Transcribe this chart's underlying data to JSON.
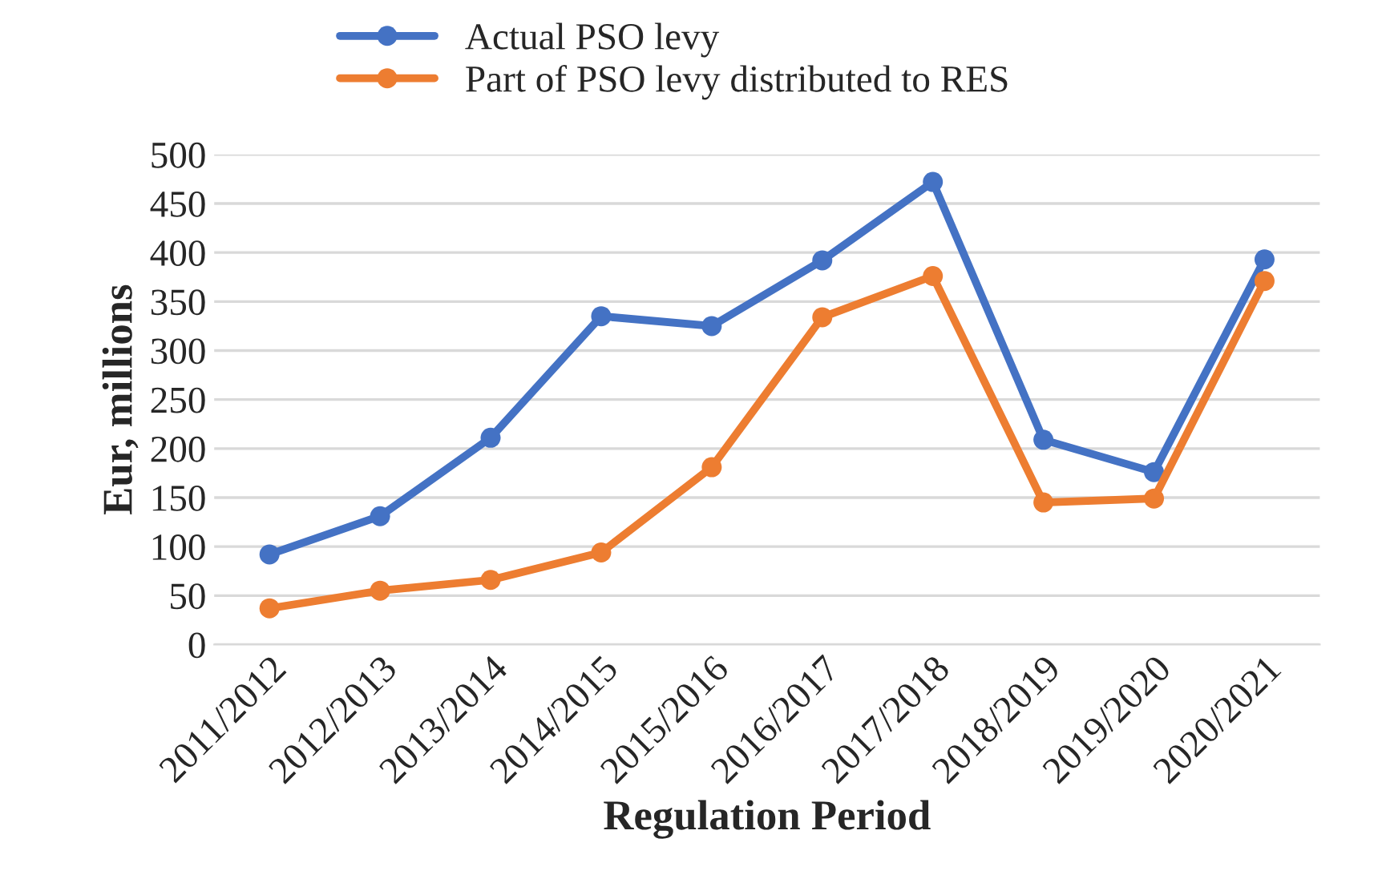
{
  "chart_data": {
    "type": "line",
    "xlabel": "Regulation Period",
    "ylabel": "Eur, millions",
    "categories": [
      "2011/2012",
      "2012/2013",
      "2013/2014",
      "2014/2015",
      "2015/2016",
      "2016/2017",
      "2017/2018",
      "2018/2019",
      "2019/2020",
      "2020/2021"
    ],
    "series": [
      {
        "name": "Actual PSO levy",
        "color": "#4472c4",
        "values": [
          92,
          131,
          211,
          335,
          325,
          392,
          472,
          209,
          176,
          393
        ]
      },
      {
        "name": "Part of PSO levy distributed to RES",
        "color": "#ed7d31",
        "values": [
          37,
          55,
          66,
          94,
          181,
          334,
          376,
          145,
          149,
          371
        ]
      }
    ],
    "ylim": [
      0,
      500
    ],
    "yticks": [
      0,
      50,
      100,
      150,
      200,
      250,
      300,
      350,
      400,
      450,
      500
    ],
    "grid": "y",
    "legend": "top",
    "marker": "circle",
    "line_style": "solid"
  }
}
